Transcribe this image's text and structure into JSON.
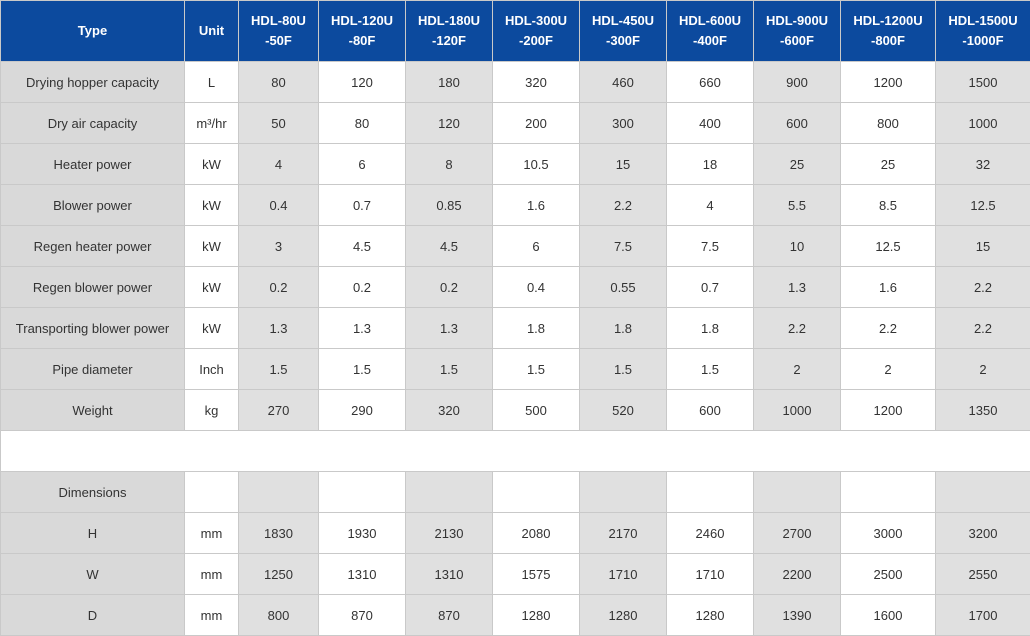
{
  "header": {
    "type_label": "Type",
    "unit_label": "Unit",
    "models": [
      {
        "line1": "HDL-80U",
        "line2": "-50F"
      },
      {
        "line1": "HDL-120U",
        "line2": "-80F"
      },
      {
        "line1": "HDL-180U",
        "line2": "-120F"
      },
      {
        "line1": "HDL-300U",
        "line2": "-200F"
      },
      {
        "line1": "HDL-450U",
        "line2": "-300F"
      },
      {
        "line1": "HDL-600U",
        "line2": "-400F"
      },
      {
        "line1": "HDL-900U",
        "line2": "-600F"
      },
      {
        "line1": "HDL-1200U",
        "line2": "-800F"
      },
      {
        "line1": "HDL-1500U",
        "line2": "-1000F"
      }
    ]
  },
  "rows": [
    {
      "label": "Drying hopper capacity",
      "unit": "L",
      "values": [
        "80",
        "120",
        "180",
        "320",
        "460",
        "660",
        "900",
        "1200",
        "1500"
      ]
    },
    {
      "label": "Dry air capacity",
      "unit": "m³/hr",
      "values": [
        "50",
        "80",
        "120",
        "200",
        "300",
        "400",
        "600",
        "800",
        "1000"
      ]
    },
    {
      "label": "Heater power",
      "unit": "kW",
      "values": [
        "4",
        "6",
        "8",
        "10.5",
        "15",
        "18",
        "25",
        "25",
        "32"
      ]
    },
    {
      "label": "Blower power",
      "unit": "kW",
      "values": [
        "0.4",
        "0.7",
        "0.85",
        "1.6",
        "2.2",
        "4",
        "5.5",
        "8.5",
        "12.5"
      ]
    },
    {
      "label": "Regen heater power",
      "unit": "kW",
      "values": [
        "3",
        "4.5",
        "4.5",
        "6",
        "7.5",
        "7.5",
        "10",
        "12.5",
        "15"
      ]
    },
    {
      "label": "Regen blower power",
      "unit": "kW",
      "values": [
        "0.2",
        "0.2",
        "0.2",
        "0.4",
        "0.55",
        "0.7",
        "1.3",
        "1.6",
        "2.2"
      ]
    },
    {
      "label": "Transporting blower power",
      "unit": "kW",
      "values": [
        "1.3",
        "1.3",
        "1.3",
        "1.8",
        "1.8",
        "1.8",
        "2.2",
        "2.2",
        "2.2"
      ]
    },
    {
      "label": "Pipe diameter",
      "unit": "Inch",
      "values": [
        "1.5",
        "1.5",
        "1.5",
        "1.5",
        "1.5",
        "1.5",
        "2",
        "2",
        "2"
      ]
    },
    {
      "label": "Weight",
      "unit": "kg",
      "values": [
        "270",
        "290",
        "320",
        "500",
        "520",
        "600",
        "1000",
        "1200",
        "1350"
      ]
    }
  ],
  "dimensions": {
    "title": "Dimensions",
    "unit": "",
    "values": [
      "",
      "",
      "",
      "",
      "",
      "",
      "",
      "",
      ""
    ],
    "rows": [
      {
        "label": "H",
        "unit": "mm",
        "values": [
          "1830",
          "1930",
          "2130",
          "2080",
          "2170",
          "2460",
          "2700",
          "3000",
          "3200"
        ]
      },
      {
        "label": "W",
        "unit": "mm",
        "values": [
          "1250",
          "1310",
          "1310",
          "1575",
          "1710",
          "1710",
          "2200",
          "2500",
          "2550"
        ]
      },
      {
        "label": "D",
        "unit": "mm",
        "values": [
          "800",
          "870",
          "870",
          "1280",
          "1280",
          "1280",
          "1390",
          "1600",
          "1700"
        ]
      }
    ]
  },
  "colors": {
    "header_bg": "#0c4a9e",
    "label_bg": "#d9d9d9",
    "shaded_cell": "#e0e0e0",
    "border": "#c9c9c9"
  }
}
